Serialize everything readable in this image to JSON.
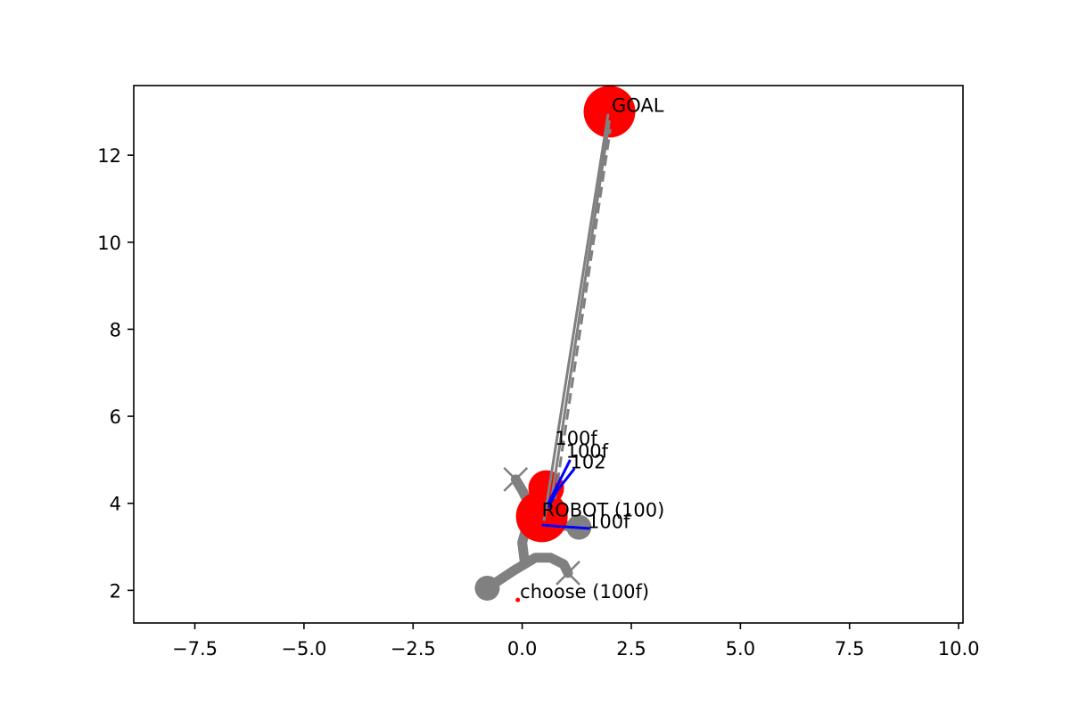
{
  "chart_data": {
    "type": "scatter",
    "title": "",
    "xlabel": "",
    "ylabel": "",
    "xlim": [
      -8.9,
      10.1
    ],
    "ylim": [
      1.25,
      13.6
    ],
    "grid": false,
    "x_ticks": [
      -7.5,
      -5.0,
      -2.5,
      0.0,
      2.5,
      5.0,
      7.5,
      10.0
    ],
    "x_tick_labels": [
      "−7.5",
      "−5.0",
      "−2.5",
      "0.0",
      "2.5",
      "5.0",
      "7.5",
      "10.0"
    ],
    "y_ticks": [
      2,
      4,
      6,
      8,
      10,
      12
    ],
    "y_tick_labels": [
      "2",
      "4",
      "6",
      "8",
      "10",
      "12"
    ],
    "colors": {
      "obstacle": "#ff0000",
      "path": "#808080",
      "heading": "#0000ff",
      "choice": "#ff0000"
    },
    "red_circles": [
      {
        "x": 2.0,
        "y": 13.0,
        "size": "large"
      },
      {
        "x": 0.55,
        "y": 4.35,
        "size": "medium"
      },
      {
        "x": 0.45,
        "y": 3.7,
        "size": "large"
      }
    ],
    "gray_dots": [
      {
        "x": -0.8,
        "y": 2.05
      },
      {
        "x": 1.3,
        "y": 3.45
      }
    ],
    "x_markers": [
      {
        "x": -0.15,
        "y": 4.55
      },
      {
        "x": 1.05,
        "y": 2.4
      }
    ],
    "thick_paths": [
      [
        [
          -0.8,
          2.05
        ],
        [
          -0.2,
          2.45
        ],
        [
          0.3,
          2.75
        ],
        [
          0.65,
          2.75
        ],
        [
          0.95,
          2.6
        ],
        [
          1.05,
          2.4
        ]
      ],
      [
        [
          0.05,
          2.7
        ],
        [
          0.0,
          3.1
        ],
        [
          0.1,
          3.45
        ],
        [
          0.35,
          3.5
        ],
        [
          0.8,
          3.5
        ],
        [
          1.3,
          3.45
        ]
      ],
      [
        [
          0.1,
          3.45
        ],
        [
          0.2,
          3.9
        ],
        [
          0.0,
          4.3
        ],
        [
          -0.15,
          4.55
        ]
      ]
    ],
    "thin_lines": [
      {
        "from": [
          0.5,
          3.6
        ],
        "to": [
          1.97,
          12.95
        ],
        "style": "solid"
      },
      {
        "from": [
          0.65,
          3.95
        ],
        "to": [
          2.0,
          12.8
        ],
        "style": "solid"
      },
      {
        "from": [
          0.75,
          4.1
        ],
        "to": [
          2.02,
          12.6
        ],
        "style": "dashed"
      }
    ],
    "heading_lines": [
      {
        "from": [
          0.45,
          3.5
        ],
        "to": [
          1.55,
          3.42
        ]
      },
      {
        "from": [
          0.6,
          4.0
        ],
        "to": [
          1.1,
          5.0
        ]
      },
      {
        "from": [
          0.65,
          4.1
        ],
        "to": [
          1.2,
          4.8
        ]
      },
      {
        "from": [
          0.6,
          3.9
        ],
        "to": [
          0.8,
          4.3
        ]
      }
    ],
    "choice_point": {
      "x": -0.1,
      "y": 1.78
    },
    "annotations": [
      {
        "text": "GOAL",
        "x": 2.05,
        "y": 13.0
      },
      {
        "text": "ROBOT (100)",
        "x": 0.45,
        "y": 3.7
      },
      {
        "text": "100f",
        "x": 0.75,
        "y": 5.35
      },
      {
        "text": "100f",
        "x": 1.0,
        "y": 5.05
      },
      {
        "text": "102",
        "x": 1.1,
        "y": 4.8
      },
      {
        "text": "100f",
        "x": 1.5,
        "y": 3.43
      },
      {
        "text": "choose (100f)",
        "x": -0.05,
        "y": 1.82
      }
    ]
  }
}
